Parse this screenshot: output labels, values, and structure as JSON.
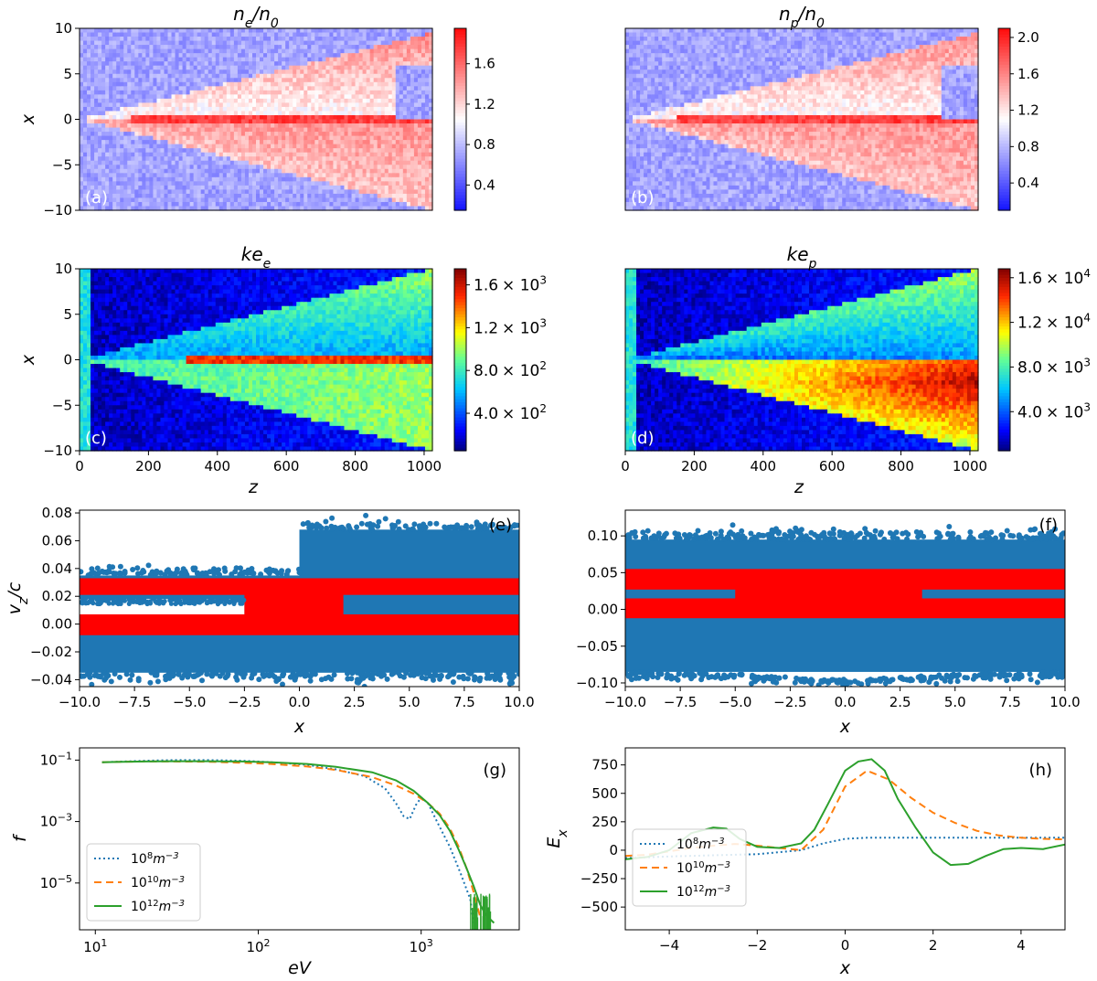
{
  "chart_data": [
    {
      "id": "a",
      "type": "heatmap",
      "panel_label": "(a)",
      "title_base": "n",
      "title_sub": "e",
      "title_mid": "/n",
      "title_sub2": "0",
      "xlim": [
        0,
        1024
      ],
      "ylim": [
        -10,
        10
      ],
      "ylabel": "x",
      "xlabel": "",
      "yticks": [
        "10",
        "5",
        "0",
        "−5",
        "−10"
      ],
      "xticks": [],
      "colormap": "bwr",
      "colorbar": {
        "min": 0.15,
        "max": 1.95,
        "ticks": [
          "1.6",
          "1.2",
          "0.8",
          "0.4"
        ],
        "tick_values": [
          1.6,
          1.2,
          0.8,
          0.4
        ]
      }
    },
    {
      "id": "b",
      "type": "heatmap",
      "panel_label": "(b)",
      "title_base": "n",
      "title_sub": "p",
      "title_mid": "/n",
      "title_sub2": "0",
      "xlim": [
        0,
        1024
      ],
      "ylim": [
        -10,
        10
      ],
      "ylabel": "",
      "xlabel": "",
      "yticks": [],
      "xticks": [],
      "colormap": "bwr",
      "colorbar": {
        "min": 0.1,
        "max": 2.1,
        "ticks": [
          "2.0",
          "1.6",
          "1.2",
          "0.8",
          "0.4"
        ],
        "tick_values": [
          2.0,
          1.6,
          1.2,
          0.8,
          0.4
        ]
      }
    },
    {
      "id": "c",
      "type": "heatmap",
      "panel_label": "(c)",
      "title_base": "ke",
      "title_sub": "e",
      "xlim": [
        0,
        1024
      ],
      "ylim": [
        -10,
        10
      ],
      "ylabel": "x",
      "xlabel": "z",
      "yticks": [
        "10",
        "5",
        "0",
        "−5",
        "−10"
      ],
      "xticks": [
        "0",
        "200",
        "400",
        "600",
        "800",
        "1000"
      ],
      "colormap": "jet",
      "colorbar": {
        "min": 50,
        "max": 1750,
        "ticks": [
          "1.6",
          "1.2",
          "8.0",
          "4.0"
        ],
        "tick_values": [
          1600,
          1200,
          800,
          400
        ],
        "tick_exponents": [
          "3",
          "3",
          "2",
          "2"
        ],
        "tick_times": "× 10"
      }
    },
    {
      "id": "d",
      "type": "heatmap",
      "panel_label": "(d)",
      "title_base": "ke",
      "title_sub": "p",
      "xlim": [
        0,
        1024
      ],
      "ylim": [
        -10,
        10
      ],
      "ylabel": "",
      "xlabel": "z",
      "yticks": [],
      "xticks": [
        "0",
        "200",
        "400",
        "600",
        "800",
        "1000"
      ],
      "colormap": "jet",
      "colorbar": {
        "min": 500,
        "max": 16800,
        "ticks": [
          "1.6",
          "1.2",
          "8.0",
          "4.0"
        ],
        "tick_values": [
          16000,
          12000,
          8000,
          4000
        ],
        "tick_exponents": [
          "4",
          "4",
          "3",
          "3"
        ],
        "tick_times": "× 10"
      }
    },
    {
      "id": "e",
      "type": "scatter",
      "panel_label": "(e)",
      "xlim": [
        -10,
        10
      ],
      "ylim": [
        -0.045,
        0.082
      ],
      "ylabel": "v",
      "ylabel_sub": "z",
      "ylabel_tail": "/c",
      "xlabel": "x",
      "xticks": [
        "−10.0",
        "−7.5",
        "−5.0",
        "−2.5",
        "0.0",
        "2.5",
        "5.0",
        "7.5",
        "10.0"
      ],
      "xtick_values": [
        -10,
        -7.5,
        -5,
        -2.5,
        0,
        2.5,
        5,
        7.5,
        10
      ],
      "yticks": [
        "0.08",
        "0.06",
        "0.04",
        "0.02",
        "0.00",
        "−0.02",
        "−0.04"
      ],
      "ytick_values": [
        0.08,
        0.06,
        0.04,
        0.02,
        0.0,
        -0.02,
        -0.04
      ],
      "series": [
        {
          "name": "blue population",
          "color": "#1f77b4"
        },
        {
          "name": "red population",
          "color": "#ff0000"
        }
      ]
    },
    {
      "id": "f",
      "type": "scatter",
      "panel_label": "(f)",
      "xlim": [
        -10,
        10
      ],
      "ylim": [
        -0.105,
        0.135
      ],
      "ylabel": "",
      "xlabel": "x",
      "xticks": [
        "−10.0",
        "−7.5",
        "−5.0",
        "−2.5",
        "0.0",
        "2.5",
        "5.0",
        "7.5",
        "10.0"
      ],
      "xtick_values": [
        -10,
        -7.5,
        -5,
        -2.5,
        0,
        2.5,
        5,
        7.5,
        10
      ],
      "yticks": [
        "0.10",
        "0.05",
        "0.00",
        "−0.05",
        "−0.10"
      ],
      "ytick_values": [
        0.1,
        0.05,
        0.0,
        -0.05,
        -0.1
      ],
      "series": [
        {
          "name": "blue population",
          "color": "#1f77b4"
        },
        {
          "name": "red population",
          "color": "#ff0000"
        }
      ]
    },
    {
      "id": "g",
      "type": "line",
      "panel_label": "(g)",
      "xscale": "log",
      "yscale": "log",
      "xlim": [
        8,
        4000
      ],
      "ylim": [
        3e-07,
        0.25
      ],
      "ylabel": "f",
      "xlabel": "eV",
      "xticks_base": [
        "10",
        "10",
        "10"
      ],
      "xticks_exp": [
        "1",
        "2",
        "3"
      ],
      "xtick_values": [
        10,
        100,
        1000
      ],
      "yticks_base": [
        "10",
        "10",
        "10"
      ],
      "yticks_exp": [
        "−1",
        "−3",
        "−5"
      ],
      "ytick_values": [
        0.1,
        0.001,
        1e-05
      ],
      "legend_location": "lower-left",
      "series": [
        {
          "name_base": "10",
          "name_exp": "8",
          "name_unit": "m",
          "name_unit_exp": "−3",
          "color": "#1f77b4",
          "dash": "2,3",
          "x": [
            11,
            15,
            20,
            30,
            50,
            80,
            120,
            200,
            300,
            450,
            600,
            700,
            780,
            850,
            930,
            1000,
            1100,
            1250,
            1500,
            1750,
            2000,
            2100
          ],
          "y": [
            0.085,
            0.09,
            0.095,
            0.1,
            0.1,
            0.095,
            0.085,
            0.07,
            0.05,
            0.03,
            0.012,
            0.004,
            0.0015,
            0.0012,
            0.0035,
            0.006,
            0.004,
            0.001,
            0.00015,
            2e-05,
            3e-06,
            5e-07
          ]
        },
        {
          "name_base": "10",
          "name_exp": "10",
          "name_unit": "m",
          "name_unit_exp": "−3",
          "color": "#ff7f0e",
          "dash": "8,5",
          "x": [
            11,
            15,
            20,
            30,
            50,
            80,
            120,
            200,
            300,
            500,
            700,
            900,
            1100,
            1300,
            1500,
            1700,
            1900,
            2100,
            2300
          ],
          "y": [
            0.085,
            0.088,
            0.09,
            0.09,
            0.088,
            0.082,
            0.075,
            0.062,
            0.048,
            0.028,
            0.015,
            0.008,
            0.004,
            0.0018,
            0.0006,
            0.00015,
            3e-05,
            5e-06,
            8e-07
          ]
        },
        {
          "name_base": "10",
          "name_exp": "12",
          "name_unit": "m",
          "name_unit_exp": "−3",
          "color": "#2ca02c",
          "dash": "",
          "x": [
            11,
            15,
            20,
            30,
            50,
            80,
            120,
            200,
            300,
            500,
            700,
            900,
            1100,
            1300,
            1500,
            1700,
            1900,
            2100,
            2300,
            2500,
            2800
          ],
          "y": [
            0.085,
            0.088,
            0.09,
            0.092,
            0.092,
            0.09,
            0.085,
            0.075,
            0.06,
            0.04,
            0.022,
            0.01,
            0.004,
            0.0016,
            0.0005,
            0.00012,
            3e-05,
            8e-06,
            2e-06,
            9e-07,
            5e-07
          ]
        }
      ]
    },
    {
      "id": "h",
      "type": "line",
      "panel_label": "(h)",
      "xlim": [
        -5,
        5
      ],
      "ylim": [
        -700,
        900
      ],
      "ylabel": "E",
      "ylabel_sub": "x",
      "xlabel": "x",
      "xticks": [
        "−4",
        "−2",
        "0",
        "2",
        "4"
      ],
      "xtick_values": [
        -4,
        -2,
        0,
        2,
        4
      ],
      "yticks": [
        "750",
        "500",
        "250",
        "0",
        "−250",
        "−500"
      ],
      "ytick_values": [
        750,
        500,
        250,
        0,
        -250,
        -500
      ],
      "legend_location": "lower-left",
      "series": [
        {
          "name_base": "10",
          "name_exp": "8",
          "name_unit": "m",
          "name_unit_exp": "−3",
          "color": "#1f77b4",
          "dash": "2,3",
          "x": [
            -5,
            -4,
            -3,
            -2,
            -1,
            -0.5,
            0,
            0.5,
            1,
            2,
            3,
            4,
            5
          ],
          "y": [
            -70,
            -55,
            -45,
            -35,
            0,
            60,
            100,
            110,
            110,
            110,
            110,
            110,
            110
          ]
        },
        {
          "name_base": "10",
          "name_exp": "10",
          "name_unit": "m",
          "name_unit_exp": "−3",
          "color": "#ff7f0e",
          "dash": "8,5",
          "x": [
            -5,
            -4.5,
            -4,
            -3.5,
            -3,
            -2.5,
            -2,
            -1.5,
            -1,
            -0.5,
            0,
            0.5,
            1,
            1.5,
            2,
            2.5,
            3,
            3.5,
            4,
            4.5,
            5
          ],
          "y": [
            -50,
            -40,
            -10,
            20,
            40,
            55,
            40,
            20,
            0,
            180,
            560,
            700,
            620,
            460,
            330,
            240,
            170,
            130,
            110,
            100,
            95
          ]
        },
        {
          "name_base": "10",
          "name_exp": "12",
          "name_unit": "m",
          "name_unit_exp": "−3",
          "color": "#2ca02c",
          "dash": "",
          "x": [
            -5,
            -4.5,
            -4,
            -3.5,
            -3,
            -2.7,
            -2.4,
            -2,
            -1.5,
            -1,
            -0.7,
            -0.4,
            0,
            0.3,
            0.6,
            0.9,
            1.2,
            1.6,
            2,
            2.4,
            2.8,
            3.2,
            3.6,
            4,
            4.5,
            5
          ],
          "y": [
            -80,
            -60,
            0,
            150,
            200,
            190,
            100,
            30,
            20,
            60,
            180,
            400,
            700,
            780,
            800,
            700,
            450,
            200,
            -20,
            -130,
            -120,
            -50,
            10,
            20,
            10,
            50
          ]
        }
      ]
    }
  ]
}
